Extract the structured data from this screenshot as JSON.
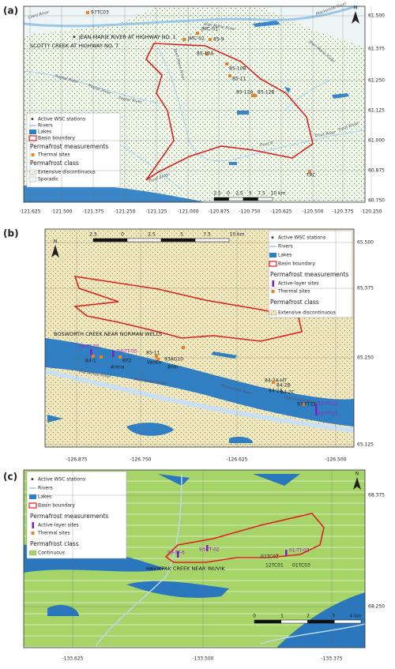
{
  "panels": [
    {
      "label": "(a)",
      "lat_labels": [
        "61.500",
        "61.375",
        "61.250",
        "61.125",
        "61.000",
        "60.875",
        "60.750"
      ],
      "lon_labels": [
        "-121.625",
        "-121.500",
        "-121.375",
        "-121.250",
        "-121.125",
        "-121.000",
        "-120.875",
        "-120.750",
        "-120.625",
        "-120.500",
        "-120.375",
        "-120.250"
      ],
      "north": "N",
      "stations": [
        "JEAN-MARIE RIVER AT HIGHWAY NO. 1",
        "SCOTTY CREEK AT HIGHWAY NO. 7"
      ],
      "sites": [
        "97TC03",
        "JMC-01",
        "JMC-02",
        "85-9",
        "85-10A",
        "85-10B",
        "85-11",
        "85-12A",
        "85-12B",
        "TRC"
      ],
      "rivers": [
        "Liard River",
        "Mackenzie River",
        "Jean Marie River",
        "Jean Marie River",
        "Jean Marie River",
        "Poplar River",
        "Poplar River",
        "Poplar River",
        "Trout River",
        "Trout River",
        "Trout River",
        "Trout R"
      ],
      "scalebar": [
        "2.5",
        "0",
        "2.5",
        "5",
        "7.5",
        "10 km"
      ],
      "legend": [
        "Active WSC stations",
        "Rivers",
        "Lakes",
        "Basin boundary",
        "Permafrost measurements",
        "Thermal sites",
        "Permafrost class",
        "Extensive discontinuous",
        "Sporadic"
      ]
    },
    {
      "label": "(b)",
      "lat_labels": [
        "65.500",
        "65.375",
        "65.250",
        "65.125"
      ],
      "lon_labels": [
        "-126.875",
        "-126.750",
        "-126.625",
        "-126.500"
      ],
      "north": "N",
      "stations": [
        "BOSWORTH CREEK NEAR NORMAN WELLS"
      ],
      "sites": [
        "99-TT-05",
        "94-TT-05",
        "84-1",
        "Arena",
        "KP2",
        "85-11",
        "VanEv",
        "93AG10",
        "80m",
        "84-2A-HT",
        "84-2B",
        "84-2A",
        "84-2C",
        "93-TT22",
        "93-TT-22",
        "93-TT-21"
      ],
      "rivers": [
        "Mackenzie River",
        "Mackenzie River",
        "Mackenzie River",
        "Mackenzie River"
      ],
      "scalebar": [
        "2.5",
        "0",
        "2.5",
        "5",
        "7.5",
        "10 km"
      ],
      "legend": [
        "Active WSC stations",
        "Rivers",
        "Lakes",
        "Basin boundary",
        "Permafrost measurements",
        "Active-layer sites",
        "Thermal sites",
        "Permafrost class",
        "Extensive discontinuous"
      ]
    },
    {
      "label": "(c)",
      "lat_labels": [
        "68.375",
        "68.250"
      ],
      "lon_labels": [
        "-133.625",
        "-133.500",
        "-133.375"
      ],
      "north": "N",
      "stations": [
        "HAVIKPAK CREEK NEAR INUVIK"
      ],
      "sites": [
        "90-TT-6",
        "93-TT-02",
        "01-TT-03",
        "01TC02",
        "12TC01",
        "01TC03"
      ],
      "rivers": [],
      "scalebar": [
        "0",
        "1",
        "2",
        "3",
        "4 km"
      ],
      "legend": [
        "Active WSC stations",
        "Rivers",
        "Lakes",
        "Basin boundary",
        "Permafrost measurements",
        "Active-layer sites",
        "Thermal sites",
        "Permafrost class",
        "Continuous"
      ]
    }
  ]
}
